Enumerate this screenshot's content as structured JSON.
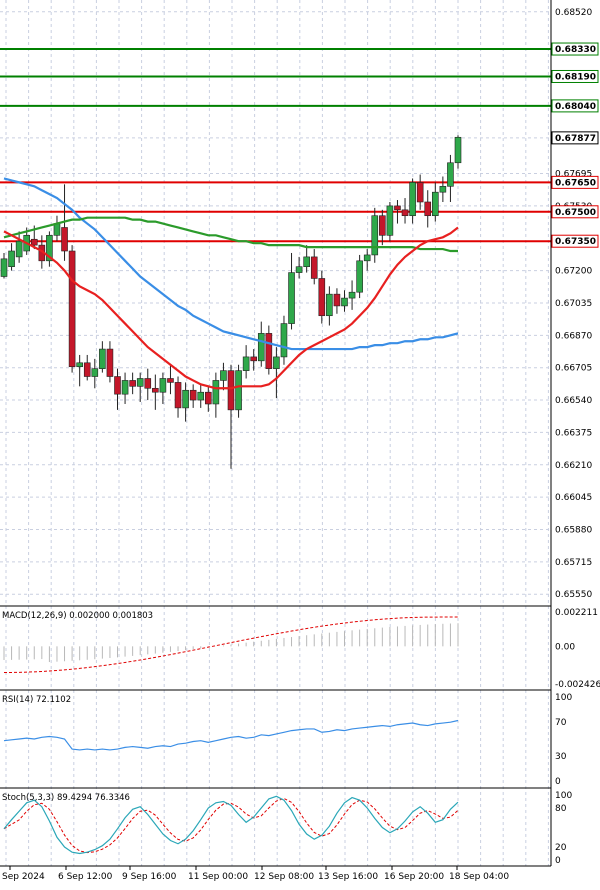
{
  "chart_data": {
    "type": "candlestick",
    "symbol_scale": "price",
    "grid": true,
    "price_axis": {
      "ticks": [
        "0.68520",
        "0.68330",
        "0.68190",
        "0.68040",
        "0.67877",
        "0.67695",
        "0.67650",
        "0.67530",
        "0.67500",
        "0.67350",
        "0.67200",
        "0.67035",
        "0.66870",
        "0.66705",
        "0.66540",
        "0.66375",
        "0.66210",
        "0.66045",
        "0.65880",
        "0.65715",
        "0.65550"
      ],
      "range": [
        0.655,
        0.6858
      ]
    },
    "resistance_levels": [
      {
        "value": 0.6833,
        "label": "0.68330",
        "color": "#008000"
      },
      {
        "value": 0.6819,
        "label": "0.68190",
        "color": "#008000"
      },
      {
        "value": 0.6804,
        "label": "0.68040",
        "color": "#008000"
      }
    ],
    "support_levels": [
      {
        "value": 0.6765,
        "label": "0.67650",
        "color": "#e00000"
      },
      {
        "value": 0.675,
        "label": "0.67500",
        "color": "#e00000"
      },
      {
        "value": 0.6735,
        "label": "0.67350",
        "color": "#e00000"
      }
    ],
    "last_price": {
      "value": 0.67877,
      "label": "0.67877"
    },
    "x_ticks": [
      "Sep 2024",
      "6 Sep 12:00",
      "9 Sep 16:00",
      "11 Sep 00:00",
      "12 Sep 08:00",
      "13 Sep 16:00",
      "16 Sep 20:00",
      "18 Sep 04:00"
    ],
    "candles": [
      [
        0.6717,
        0.6729,
        0.6716,
        0.6726
      ],
      [
        0.6722,
        0.6734,
        0.672,
        0.673
      ],
      [
        0.6727,
        0.674,
        0.6724,
        0.6735
      ],
      [
        0.673,
        0.6742,
        0.6728,
        0.6738
      ],
      [
        0.6736,
        0.6743,
        0.6731,
        0.6733
      ],
      [
        0.6733,
        0.6738,
        0.6721,
        0.6725
      ],
      [
        0.6725,
        0.674,
        0.6722,
        0.6738
      ],
      [
        0.6738,
        0.6748,
        0.6735,
        0.6744
      ],
      [
        0.6742,
        0.6764,
        0.6725,
        0.673
      ],
      [
        0.673,
        0.6733,
        0.6668,
        0.6671
      ],
      [
        0.6671,
        0.6677,
        0.6661,
        0.6673
      ],
      [
        0.6673,
        0.6677,
        0.6664,
        0.6666
      ],
      [
        0.6666,
        0.6675,
        0.666,
        0.667
      ],
      [
        0.667,
        0.6684,
        0.6668,
        0.668
      ],
      [
        0.668,
        0.6684,
        0.6663,
        0.6666
      ],
      [
        0.6666,
        0.667,
        0.6649,
        0.6657
      ],
      [
        0.6657,
        0.6668,
        0.6652,
        0.6664
      ],
      [
        0.6664,
        0.6668,
        0.6657,
        0.6661
      ],
      [
        0.6661,
        0.6668,
        0.6653,
        0.6665
      ],
      [
        0.6665,
        0.667,
        0.6654,
        0.666
      ],
      [
        0.666,
        0.6667,
        0.6649,
        0.6658
      ],
      [
        0.6658,
        0.6668,
        0.6652,
        0.6665
      ],
      [
        0.6665,
        0.6672,
        0.6657,
        0.6663
      ],
      [
        0.6663,
        0.6666,
        0.6645,
        0.665
      ],
      [
        0.665,
        0.6663,
        0.6643,
        0.6659
      ],
      [
        0.6659,
        0.6662,
        0.665,
        0.6654
      ],
      [
        0.6654,
        0.6662,
        0.665,
        0.6658
      ],
      [
        0.6658,
        0.6661,
        0.6648,
        0.6652
      ],
      [
        0.6652,
        0.6668,
        0.6645,
        0.6664
      ],
      [
        0.6664,
        0.6673,
        0.6659,
        0.6669
      ],
      [
        0.6669,
        0.6672,
        0.6619,
        0.6649
      ],
      [
        0.6649,
        0.6672,
        0.6645,
        0.6669
      ],
      [
        0.6669,
        0.6682,
        0.6665,
        0.6676
      ],
      [
        0.6676,
        0.668,
        0.6669,
        0.6674
      ],
      [
        0.6674,
        0.6694,
        0.6671,
        0.6688
      ],
      [
        0.6688,
        0.6692,
        0.6667,
        0.667
      ],
      [
        0.667,
        0.6681,
        0.6655,
        0.6676
      ],
      [
        0.6676,
        0.6697,
        0.6672,
        0.6693
      ],
      [
        0.6693,
        0.6729,
        0.669,
        0.6719
      ],
      [
        0.6719,
        0.6727,
        0.6716,
        0.6722
      ],
      [
        0.6722,
        0.6733,
        0.6719,
        0.6727
      ],
      [
        0.6727,
        0.6731,
        0.6713,
        0.6716
      ],
      [
        0.6716,
        0.672,
        0.6693,
        0.6697
      ],
      [
        0.6697,
        0.6712,
        0.6692,
        0.6708
      ],
      [
        0.6708,
        0.6711,
        0.6698,
        0.6702
      ],
      [
        0.6702,
        0.671,
        0.6699,
        0.6706
      ],
      [
        0.6706,
        0.6715,
        0.67,
        0.6709
      ],
      [
        0.6709,
        0.6728,
        0.6706,
        0.6725
      ],
      [
        0.6725,
        0.6731,
        0.672,
        0.6728
      ],
      [
        0.6728,
        0.6752,
        0.6724,
        0.6748
      ],
      [
        0.6748,
        0.6751,
        0.6733,
        0.6738
      ],
      [
        0.6738,
        0.6755,
        0.6735,
        0.6753
      ],
      [
        0.6753,
        0.6756,
        0.6744,
        0.6751
      ],
      [
        0.6751,
        0.6757,
        0.6744,
        0.6748
      ],
      [
        0.6748,
        0.6767,
        0.6744,
        0.6765
      ],
      [
        0.6765,
        0.6769,
        0.6751,
        0.6755
      ],
      [
        0.6755,
        0.6761,
        0.6742,
        0.6748
      ],
      [
        0.6748,
        0.6765,
        0.6745,
        0.676
      ],
      [
        0.676,
        0.6768,
        0.6755,
        0.6763
      ],
      [
        0.6763,
        0.6779,
        0.6755,
        0.6775
      ],
      [
        0.6775,
        0.6789,
        0.6772,
        0.6788
      ]
    ],
    "ma_series": [
      {
        "color": "#3a8ee6",
        "values": [
          0.6767,
          0.6766,
          0.6765,
          0.6764,
          0.6763,
          0.6761,
          0.6759,
          0.6757,
          0.6754,
          0.6751,
          0.6747,
          0.6744,
          0.6741,
          0.6737,
          0.6733,
          0.6729,
          0.6725,
          0.6721,
          0.6717,
          0.6714,
          0.6711,
          0.6708,
          0.6705,
          0.6702,
          0.67,
          0.6697,
          0.6695,
          0.6693,
          0.6691,
          0.6689,
          0.6688,
          0.6687,
          0.6686,
          0.6685,
          0.6684,
          0.6683,
          0.6682,
          0.6681,
          0.668,
          0.668,
          0.668,
          0.668,
          0.668,
          0.668,
          0.668,
          0.668,
          0.668,
          0.6681,
          0.6681,
          0.6682,
          0.6682,
          0.6683,
          0.6683,
          0.6684,
          0.6684,
          0.6685,
          0.6685,
          0.6686,
          0.6686,
          0.6687,
          0.6688
        ]
      },
      {
        "color": "#2b9b2b",
        "values": [
          0.6737,
          0.6738,
          0.6739,
          0.674,
          0.6741,
          0.6742,
          0.6743,
          0.6744,
          0.6745,
          0.6746,
          0.6746,
          0.6747,
          0.6747,
          0.6747,
          0.6747,
          0.6747,
          0.6747,
          0.6746,
          0.6746,
          0.6745,
          0.6745,
          0.6744,
          0.6743,
          0.6742,
          0.6741,
          0.674,
          0.6739,
          0.6738,
          0.6738,
          0.6737,
          0.6736,
          0.6735,
          0.6735,
          0.6734,
          0.6734,
          0.6733,
          0.6733,
          0.6733,
          0.6733,
          0.6733,
          0.6732,
          0.6732,
          0.6732,
          0.6732,
          0.6732,
          0.6732,
          0.6732,
          0.6732,
          0.6732,
          0.6732,
          0.6732,
          0.6732,
          0.6732,
          0.6732,
          0.6732,
          0.6731,
          0.6731,
          0.6731,
          0.6731,
          0.673,
          0.673
        ]
      },
      {
        "color": "#e82020",
        "values": [
          0.674,
          0.6738,
          0.6736,
          0.6734,
          0.6732,
          0.673,
          0.6727,
          0.6724,
          0.672,
          0.6715,
          0.6712,
          0.671,
          0.6708,
          0.6705,
          0.6701,
          0.6697,
          0.6693,
          0.6689,
          0.6685,
          0.6681,
          0.6678,
          0.6675,
          0.6672,
          0.6669,
          0.6666,
          0.6664,
          0.6662,
          0.6661,
          0.666,
          0.666,
          0.666,
          0.6661,
          0.6661,
          0.6661,
          0.6661,
          0.6662,
          0.6665,
          0.6669,
          0.6673,
          0.6677,
          0.668,
          0.6682,
          0.6684,
          0.6686,
          0.6688,
          0.669,
          0.6693,
          0.6697,
          0.6701,
          0.6706,
          0.6712,
          0.6718,
          0.6723,
          0.6727,
          0.673,
          0.6733,
          0.6735,
          0.6736,
          0.6737,
          0.6739,
          0.6742
        ]
      }
    ],
    "macd": {
      "label": "MACD(12,26,9) 0.002000 0.001803",
      "ticks": [
        "0.002211",
        "0.00",
        "-0.002426"
      ],
      "range": [
        -0.002426,
        0.002211
      ]
    },
    "rsi": {
      "label": "RSI(14) 72.1102",
      "ticks": [
        "100",
        "70",
        "30",
        "0"
      ],
      "values": [
        48,
        49,
        50,
        51,
        50,
        52,
        53,
        52,
        50,
        38,
        37,
        38,
        37,
        38,
        37,
        38,
        40,
        41,
        40,
        39,
        41,
        42,
        41,
        44,
        45,
        47,
        48,
        46,
        48,
        50,
        52,
        53,
        51,
        52,
        55,
        54,
        56,
        58,
        60,
        61,
        62,
        62,
        58,
        59,
        61,
        60,
        62,
        63,
        64,
        65,
        66,
        65,
        67,
        68,
        69,
        67,
        66,
        68,
        69,
        70,
        72
      ]
    },
    "stoch": {
      "label": "Stoch(5,3,3) 89.4294 76.3346",
      "ticks": [
        "100",
        "80",
        "20",
        "0"
      ],
      "k": [
        48,
        62,
        75,
        88,
        92,
        82,
        60,
        35,
        20,
        12,
        10,
        12,
        16,
        22,
        32,
        48,
        65,
        78,
        82,
        70,
        55,
        40,
        30,
        25,
        32,
        45,
        62,
        80,
        88,
        90,
        84,
        70,
        58,
        66,
        80,
        94,
        98,
        92,
        76,
        55,
        40,
        32,
        38,
        52,
        72,
        88,
        96,
        92,
        80,
        64,
        50,
        42,
        48,
        60,
        74,
        82,
        72,
        58,
        62,
        78,
        89
      ]
    }
  }
}
